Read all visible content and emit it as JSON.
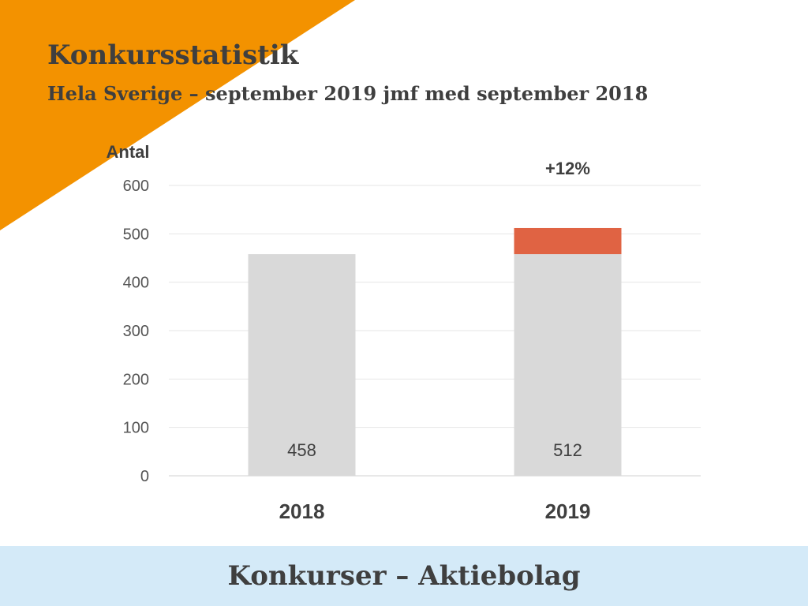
{
  "header": {
    "title": "Konkursstatistik",
    "subtitle": "Hela Sverige – september 2019 jmf med september 2018"
  },
  "footer": {
    "text": "Konkurser – Aktiebolag"
  },
  "colors": {
    "corner": "#f39200",
    "bar_base": "#d9d9d9",
    "bar_increase": "#e06343",
    "gridline": "#e6e6e6",
    "axis_text": "#555555",
    "footer_bg": "#d4eaf8"
  },
  "chart_data": {
    "type": "bar",
    "stacked": true,
    "ylabel": "Antal",
    "ylim": [
      0,
      600
    ],
    "yticks": [
      0,
      100,
      200,
      300,
      400,
      500,
      600
    ],
    "grid": true,
    "categories": [
      "2018",
      "2019"
    ],
    "totals": [
      458,
      512
    ],
    "series": [
      {
        "values": [
          458,
          458
        ]
      },
      {
        "values": [
          0,
          54
        ]
      }
    ],
    "annotations": [
      {
        "category": "2019",
        "text": "+12%"
      }
    ]
  }
}
